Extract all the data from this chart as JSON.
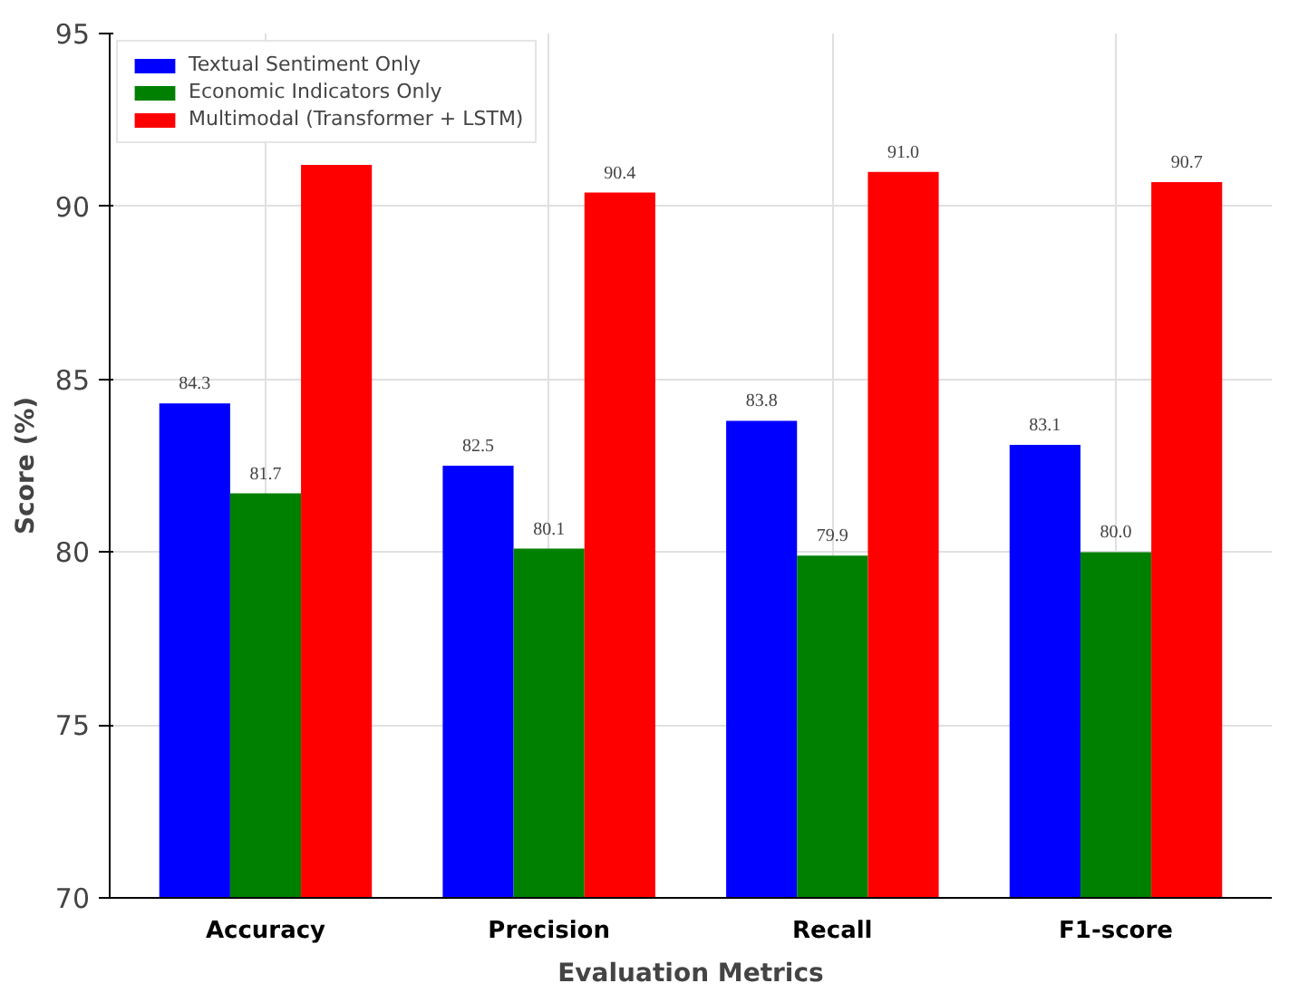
{
  "chart_data": {
    "type": "bar",
    "xlabel": "Evaluation Metrics",
    "ylabel": "Score (%)",
    "categories": [
      "Accuracy",
      "Precision",
      "Recall",
      "F1-score"
    ],
    "series": [
      {
        "name": "Textual Sentiment Only",
        "color": "#0000ff",
        "values": [
          84.3,
          82.5,
          83.8,
          83.1
        ],
        "value_labels": [
          "84.3",
          "82.5",
          "83.8",
          "83.1"
        ]
      },
      {
        "name": "Economic Indicators Only",
        "color": "#008000",
        "values": [
          81.7,
          80.1,
          79.9,
          80.0
        ],
        "value_labels": [
          "81.7",
          "80.1",
          "79.9",
          "80.0"
        ]
      },
      {
        "name": "Multimodal (Transformer + LSTM)",
        "color": "#ff0000",
        "values": [
          91.2,
          90.4,
          91.0,
          90.7
        ],
        "value_labels": [
          null,
          "90.4",
          "91.0",
          "90.7"
        ]
      }
    ],
    "ylim": [
      70,
      95
    ],
    "yticks": [
      70,
      75,
      80,
      85,
      90,
      95
    ],
    "grid": true,
    "legend": "top left"
  }
}
